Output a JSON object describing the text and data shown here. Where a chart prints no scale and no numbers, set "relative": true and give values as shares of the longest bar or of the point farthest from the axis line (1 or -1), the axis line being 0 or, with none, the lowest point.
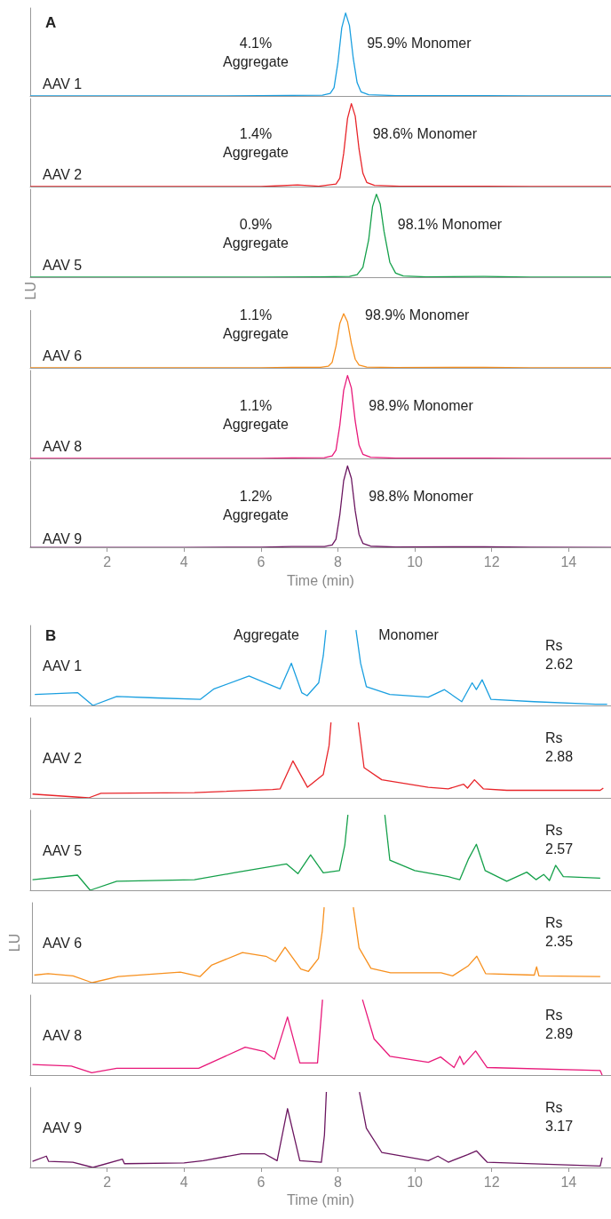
{
  "chart_data": [
    {
      "type": "line",
      "title": "A",
      "relative": true,
      "tick_labels": false,
      "xlim": [
        0,
        15.1
      ],
      "annotations": [
        "4.1%\nAggregate",
        "95.9% Monomer"
      ],
      "x": [
        0,
        2,
        4,
        6,
        6.8,
        7.6,
        7.8,
        7.9,
        8.0,
        8.1,
        8.2,
        8.3,
        8.4,
        8.5,
        8.6,
        8.8,
        9.5,
        11.8,
        13,
        15.1
      ],
      "series": [
        {
          "name": "AAV 1",
          "color": "#1a9fe0",
          "values": [
            0,
            0,
            0,
            0.003,
            0.006,
            0.01,
            0.03,
            0.1,
            0.4,
            0.82,
            1,
            0.85,
            0.45,
            0.16,
            0.05,
            0.015,
            0.005,
            0.005,
            0.002,
            0
          ]
        }
      ]
    },
    {
      "type": "line",
      "relative": true,
      "tick_labels": false,
      "xlim": [
        0,
        15.1
      ],
      "annotations": [
        "1.4%\nAggregate",
        "98.6% Monomer"
      ],
      "x": [
        0,
        2,
        4,
        6,
        6.95,
        7.5,
        7.95,
        8.05,
        8.15,
        8.25,
        8.35,
        8.45,
        8.55,
        8.65,
        8.75,
        8.95,
        9.6,
        11.8,
        13,
        15.1
      ],
      "series": [
        {
          "name": "AAV 2",
          "color": "#e8252a",
          "values": [
            0,
            0,
            0,
            0,
            0.02,
            0.003,
            0.03,
            0.1,
            0.4,
            0.82,
            1,
            0.85,
            0.45,
            0.16,
            0.05,
            0.015,
            0.005,
            0.005,
            0.002,
            0
          ]
        }
      ]
    },
    {
      "type": "line",
      "relative": true,
      "tick_labels": false,
      "xlim": [
        0,
        15.1
      ],
      "annotations": [
        "0.9%\nAggregate",
        "98.1% Monomer"
      ],
      "x": [
        0,
        2,
        4,
        6,
        7.5,
        8.3,
        8.5,
        8.65,
        8.8,
        8.9,
        9.0,
        9.1,
        9.2,
        9.35,
        9.5,
        9.7,
        10.3,
        11.8,
        13,
        15.1
      ],
      "series": [
        {
          "name": "AAV 5",
          "color": "#14a04a",
          "values": [
            0,
            0,
            0,
            0,
            0.005,
            0.01,
            0.03,
            0.12,
            0.45,
            0.85,
            1,
            0.88,
            0.55,
            0.18,
            0.05,
            0.015,
            0.005,
            0.01,
            0.002,
            0
          ]
        }
      ]
    },
    {
      "type": "line",
      "relative": true,
      "tick_labels": false,
      "xlim": [
        0,
        15.1
      ],
      "ylabel": "LU",
      "annotations": [
        "1.1%\nAggregate",
        "98.9% Monomer"
      ],
      "x": [
        0,
        2,
        4,
        6,
        6.8,
        7.55,
        7.75,
        7.85,
        7.95,
        8.05,
        8.15,
        8.25,
        8.35,
        8.45,
        8.55,
        8.75,
        9.5,
        11.8,
        13,
        15.1
      ],
      "series": [
        {
          "name": "AAV 6",
          "color": "#f7901e",
          "values": [
            0,
            0,
            0,
            0.003,
            0.008,
            0.01,
            0.03,
            0.1,
            0.4,
            0.82,
            1,
            0.85,
            0.45,
            0.16,
            0.05,
            0.015,
            0.005,
            0.01,
            0.002,
            0
          ]
        }
      ]
    },
    {
      "type": "line",
      "relative": true,
      "tick_labels": false,
      "xlim": [
        0,
        15.1
      ],
      "annotations": [
        "1.1%\nAggregate",
        "98.9% Monomer"
      ],
      "x": [
        0,
        2,
        4,
        6,
        6.8,
        7.65,
        7.85,
        7.95,
        8.05,
        8.15,
        8.25,
        8.35,
        8.45,
        8.55,
        8.65,
        8.85,
        9.5,
        11.8,
        13,
        15.1
      ],
      "series": [
        {
          "name": "AAV 8",
          "color": "#e8197a",
          "values": [
            0,
            0,
            0,
            0.002,
            0.006,
            0.01,
            0.03,
            0.1,
            0.4,
            0.82,
            1,
            0.85,
            0.45,
            0.16,
            0.05,
            0.015,
            0.005,
            0.005,
            0.002,
            0
          ]
        }
      ]
    },
    {
      "type": "line",
      "relative": true,
      "tick_labels": "x",
      "xlim": [
        0,
        15.1
      ],
      "xticks": [
        2,
        4,
        6,
        8,
        10,
        12,
        14
      ],
      "xlabel": "Time (min)",
      "annotations": [
        "1.2%\nAggregate",
        "98.8% Monomer"
      ],
      "x": [
        0,
        2,
        4,
        6,
        6.8,
        7.65,
        7.85,
        7.95,
        8.05,
        8.15,
        8.25,
        8.35,
        8.45,
        8.55,
        8.65,
        8.85,
        9.5,
        11.8,
        13,
        15.1
      ],
      "series": [
        {
          "name": "AAV 9",
          "color": "#6b1660",
          "values": [
            0,
            0,
            0,
            0.002,
            0.01,
            0.01,
            0.03,
            0.1,
            0.4,
            0.82,
            1,
            0.85,
            0.45,
            0.16,
            0.05,
            0.015,
            0.005,
            0.008,
            0.002,
            0
          ]
        }
      ]
    },
    {
      "type": "line",
      "title": "B",
      "relative": true,
      "tick_labels": false,
      "xlim": [
        0,
        15.1
      ],
      "annotations": [
        "Aggregate",
        "Monomer",
        "Rs\n2.62"
      ],
      "x": [
        0.12,
        1.23,
        1.63,
        2.25,
        3.25,
        4.42,
        4.78,
        5.69,
        6.3,
        6.5,
        6.79,
        7.06,
        7.2,
        7.5,
        7.62,
        7.69,
        8.1,
        8.47,
        8.59,
        8.74,
        9.35,
        10.35,
        10.77,
        11.22,
        11.49,
        11.6,
        11.75,
        11.98,
        13.1,
        14.7,
        15.0
      ],
      "series": [
        {
          "name": "AAV 1",
          "color": "#1a9fe0",
          "values": [
            0.145,
            0.17,
            0,
            0.12,
            0.1,
            0.08,
            0.22,
            0.39,
            0.26,
            0.22,
            0.56,
            0.17,
            0.13,
            0.3,
            0.66,
            1,
            null,
            1,
            0.56,
            0.25,
            0.145,
            0.11,
            0.21,
            0.05,
            0.3,
            0.21,
            0.34,
            0.08,
            0.05,
            0.016,
            0.016
          ]
        }
      ]
    },
    {
      "type": "line",
      "relative": true,
      "tick_labels": false,
      "xlim": [
        0,
        15.1
      ],
      "annotations": [
        "Rs\n2.88"
      ],
      "x": [
        0.06,
        1.52,
        1.84,
        4.27,
        6.3,
        6.5,
        6.83,
        7.21,
        7.62,
        7.77,
        7.82,
        8.1,
        8.53,
        8.68,
        9.14,
        10.35,
        10.87,
        11.27,
        11.37,
        11.55,
        11.78,
        12.39,
        14.82,
        14.9
      ],
      "series": [
        {
          "name": "AAV 2",
          "color": "#e8252a",
          "values": [
            0.05,
            0,
            0.06,
            0.07,
            0.11,
            0.12,
            0.49,
            0.14,
            0.31,
            0.69,
            1,
            null,
            1,
            0.4,
            0.24,
            0.14,
            0.12,
            0.18,
            0.13,
            0.24,
            0.12,
            0.1,
            0.1,
            0.13
          ]
        }
      ]
    },
    {
      "type": "line",
      "relative": true,
      "tick_labels": false,
      "xlim": [
        0,
        15.1
      ],
      "annotations": [
        "Rs\n2.57"
      ],
      "x": [
        0.06,
        1.23,
        1.56,
        2.25,
        4.27,
        5.29,
        6.66,
        6.96,
        7.29,
        7.62,
        8.04,
        8.18,
        8.26,
        8.7,
        9.22,
        9.35,
        10.0,
        10.87,
        11.17,
        11.4,
        11.6,
        11.83,
        12.39,
        12.91,
        13.15,
        13.35,
        13.5,
        13.66,
        13.86,
        14.82
      ],
      "series": [
        {
          "name": "AAV 5",
          "color": "#14a04a",
          "values": [
            0.14,
            0.2,
            0,
            0.12,
            0.14,
            0.23,
            0.35,
            0.22,
            0.47,
            0.23,
            0.26,
            0.6,
            1,
            null,
            1,
            0.4,
            0.26,
            0.18,
            0.14,
            0.42,
            0.61,
            0.26,
            0.12,
            0.24,
            0.14,
            0.21,
            0.13,
            0.33,
            0.18,
            0.16
          ]
        }
      ]
    },
    {
      "type": "line",
      "relative": true,
      "tick_labels": false,
      "xlim": [
        0,
        15.1
      ],
      "ylabel": "LU",
      "annotations": [
        "Rs\n2.35"
      ],
      "x": [
        0.06,
        0.42,
        1.07,
        1.57,
        2.25,
        3.87,
        4.38,
        4.68,
        5.49,
        6.1,
        6.35,
        6.6,
        7.01,
        7.21,
        7.47,
        7.57,
        7.62,
        8.0,
        8.38,
        8.53,
        8.84,
        9.35,
        10.67,
        10.97,
        11.37,
        11.6,
        11.83,
        13.1,
        13.16,
        13.22,
        14.82
      ],
      "series": [
        {
          "name": "AAV 6",
          "color": "#f7901e",
          "values": [
            0.1,
            0.12,
            0.09,
            0,
            0.08,
            0.14,
            0.08,
            0.23,
            0.4,
            0.35,
            0.28,
            0.47,
            0.18,
            0.15,
            0.32,
            0.68,
            1,
            null,
            1,
            0.46,
            0.19,
            0.13,
            0.13,
            0.09,
            0.22,
            0.35,
            0.12,
            0.1,
            0.21,
            0.09,
            0.08
          ]
        }
      ]
    },
    {
      "type": "line",
      "relative": true,
      "tick_labels": false,
      "xlim": [
        0,
        15.1
      ],
      "annotations": [
        "Rs\n2.89"
      ],
      "x": [
        0.06,
        1.07,
        1.6,
        2.25,
        4.38,
        5.59,
        6.1,
        6.35,
        6.69,
        7.01,
        7.47,
        7.6,
        8.1,
        8.64,
        8.94,
        9.35,
        10.35,
        10.67,
        11.02,
        11.17,
        11.27,
        11.58,
        11.88,
        14.82,
        14.87
      ],
      "series": [
        {
          "name": "AAV 8",
          "color": "#e8197a",
          "values": [
            0.14,
            0.12,
            0.03,
            0.09,
            0.09,
            0.37,
            0.31,
            0.21,
            0.77,
            0.16,
            0.16,
            1,
            null,
            1,
            0.48,
            0.25,
            0.17,
            0.24,
            0.1,
            0.25,
            0.14,
            0.32,
            0.1,
            0.06,
            0
          ]
        }
      ]
    },
    {
      "type": "line",
      "relative": true,
      "tick_labels": "x",
      "xlim": [
        0,
        15.1
      ],
      "xticks": [
        2,
        4,
        6,
        8,
        10,
        12,
        14
      ],
      "xlabel": "Time (min)",
      "annotations": [
        "Rs\n3.17"
      ],
      "x": [
        0.06,
        0.42,
        0.48,
        1.11,
        1.63,
        2.4,
        2.45,
        4.0,
        4.5,
        5.49,
        6.1,
        6.42,
        6.69,
        7.01,
        7.57,
        7.65,
        7.7,
        8.2,
        8.56,
        8.74,
        9.14,
        10.35,
        10.6,
        10.87,
        11.37,
        11.6,
        11.88,
        14.82,
        14.87
      ],
      "series": [
        {
          "name": "AAV 9",
          "color": "#6b1660",
          "values": [
            0.08,
            0.15,
            0.08,
            0.07,
            0,
            0.11,
            0.05,
            0.06,
            0.09,
            0.18,
            0.18,
            0.09,
            0.78,
            0.09,
            0.07,
            0.43,
            1,
            null,
            1,
            0.52,
            0.2,
            0.09,
            0.15,
            0.07,
            0.17,
            0.22,
            0.07,
            0.02,
            0.13
          ]
        }
      ]
    }
  ]
}
